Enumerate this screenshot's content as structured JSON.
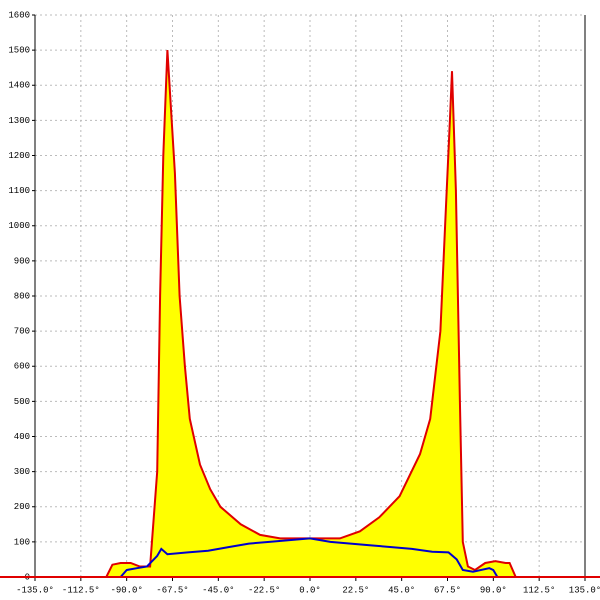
{
  "chart_data": {
    "type": "area",
    "xlim": [
      -135,
      135
    ],
    "ylim": [
      0,
      1600
    ],
    "xticks": [
      {
        "value": -135,
        "label": "-135.0°"
      },
      {
        "value": -112.5,
        "label": "-112.5°"
      },
      {
        "value": -90,
        "label": "-90.0°"
      },
      {
        "value": -67.5,
        "label": "-67.5°"
      },
      {
        "value": -45,
        "label": "-45.0°"
      },
      {
        "value": -22.5,
        "label": "-22.5°"
      },
      {
        "value": 0,
        "label": "0.0°"
      },
      {
        "value": 22.5,
        "label": "22.5°"
      },
      {
        "value": 45,
        "label": "45.0°"
      },
      {
        "value": 67.5,
        "label": "67.5°"
      },
      {
        "value": 90,
        "label": "90.0°"
      },
      {
        "value": 112.5,
        "label": "112.5°"
      },
      {
        "value": 135,
        "label": "135.0°"
      }
    ],
    "yticks": [
      0,
      100,
      200,
      300,
      400,
      500,
      600,
      700,
      800,
      900,
      1000,
      1100,
      1200,
      1300,
      1400,
      1500,
      1600
    ],
    "grid": true,
    "series": [
      {
        "color": "#e00000",
        "fill": "#ffff00",
        "x": [
          -100,
          -97,
          -93,
          -88,
          -83.5,
          -78.5,
          -75,
          -73.6,
          -72,
          -70,
          -66.3,
          -64,
          -61.4,
          -59,
          -54,
          -49,
          -44,
          -34,
          -24.5,
          -14.7,
          0,
          14.7,
          24.5,
          34,
          44,
          54,
          59,
          64,
          66.3,
          68.7,
          69.7,
          71.6,
          73.6,
          75,
          77.5,
          81,
          86,
          91,
          96,
          98,
          101
        ],
        "values": [
          0,
          35,
          40,
          40,
          30,
          30,
          300,
          800,
          1200,
          1500,
          1150,
          800,
          600,
          450,
          320,
          250,
          200,
          150,
          120,
          110,
          110,
          110,
          130,
          170,
          230,
          350,
          450,
          700,
          1000,
          1300,
          1440,
          1100,
          500,
          100,
          30,
          20,
          40,
          45,
          40,
          40,
          0
        ]
      },
      {
        "color": "#0000cc",
        "x": [
          -93,
          -90,
          -85,
          -80,
          -75,
          -73,
          -70,
          -60,
          -50,
          -40,
          -30,
          -20,
          -10,
          0,
          10,
          20,
          30,
          40,
          50,
          60,
          68,
          72,
          75,
          80,
          88,
          90,
          92
        ],
        "values": [
          0,
          20,
          25,
          30,
          60,
          80,
          65,
          70,
          75,
          85,
          95,
          100,
          105,
          110,
          100,
          95,
          90,
          85,
          80,
          72,
          70,
          50,
          20,
          15,
          25,
          20,
          0
        ]
      }
    ]
  }
}
